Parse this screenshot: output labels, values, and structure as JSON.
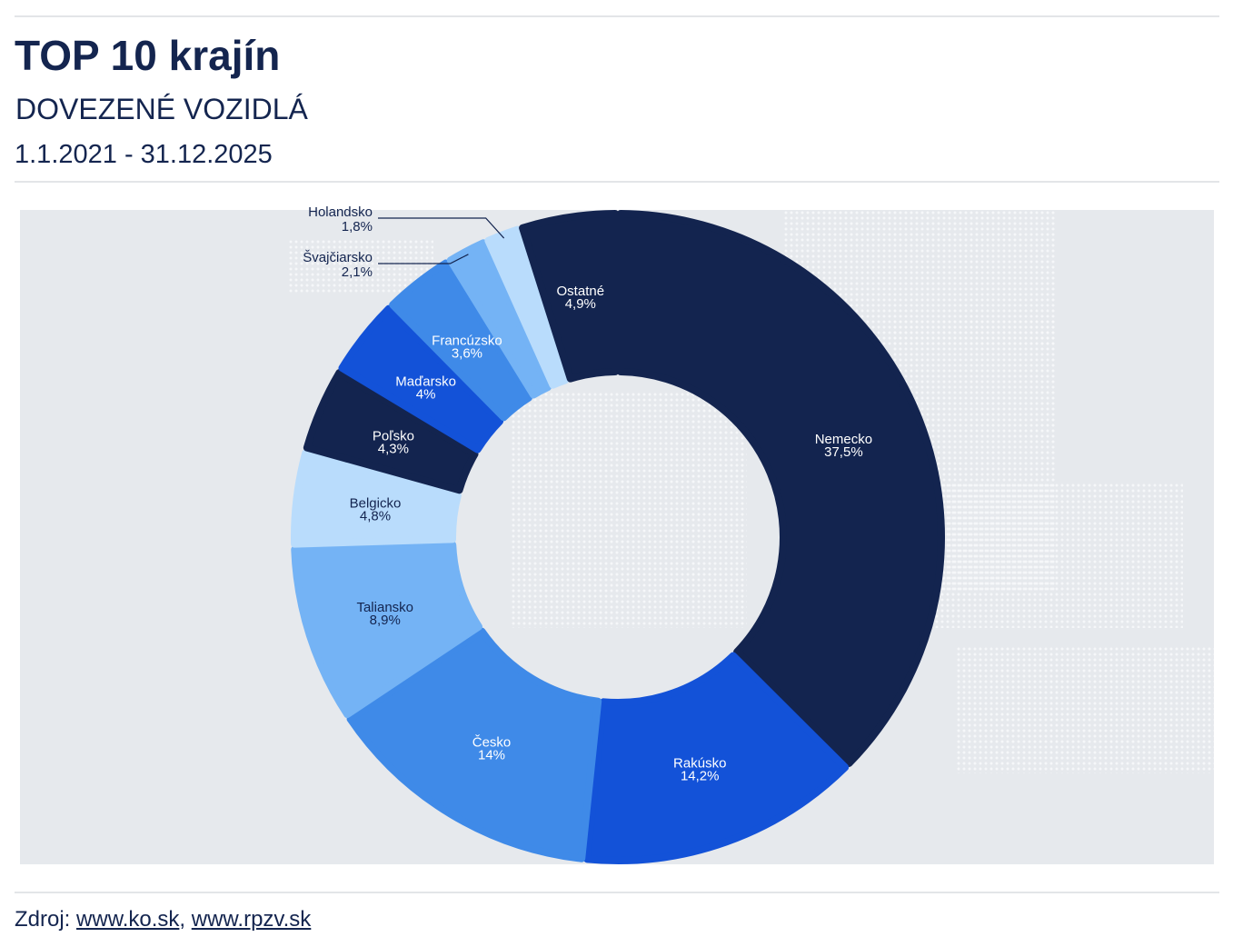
{
  "header": {
    "title": "TOP 10 krajín",
    "subtitle": "DOVEZENÉ VOZIDLÁ",
    "period": "1.1.2021 - 31.12.2025"
  },
  "chart_data": {
    "type": "pie",
    "variant": "donut",
    "title": "TOP 10 krajín",
    "categories": [
      "Nemecko",
      "Rakúsko",
      "Česko",
      "Taliansko",
      "Belgicko",
      "Poľsko",
      "Maďarsko",
      "Francúzsko",
      "Švajčiarsko",
      "Holandsko",
      "Ostatné"
    ],
    "values": [
      37.5,
      14.2,
      14,
      8.9,
      4.8,
      4.3,
      4,
      3.6,
      2.1,
      1.8,
      4.9
    ],
    "value_labels": [
      "37,5%",
      "14,2%",
      "14%",
      "8,9%",
      "4,8%",
      "4,3%",
      "4%",
      "3,6%",
      "2,1%",
      "1,8%",
      "4,9%"
    ],
    "colors": [
      "#13244f",
      "#1352d8",
      "#3f8ae8",
      "#74b3f5",
      "#b9dcfc",
      "#13244f",
      "#1352d8",
      "#3f8ae8",
      "#74b3f5",
      "#b9dcfc",
      "#13244f"
    ],
    "label_colors": [
      "#ffffff",
      "#ffffff",
      "#ffffff",
      "#13244f",
      "#13244f",
      "#ffffff",
      "#ffffff",
      "#ffffff",
      "#13244f",
      "#13244f",
      "#ffffff"
    ],
    "start": "top",
    "direction": "clockwise",
    "legend": "none"
  },
  "footer": {
    "source_label": "Zdroj:",
    "links": [
      "www.ko.sk",
      "www.rpzv.sk"
    ]
  }
}
